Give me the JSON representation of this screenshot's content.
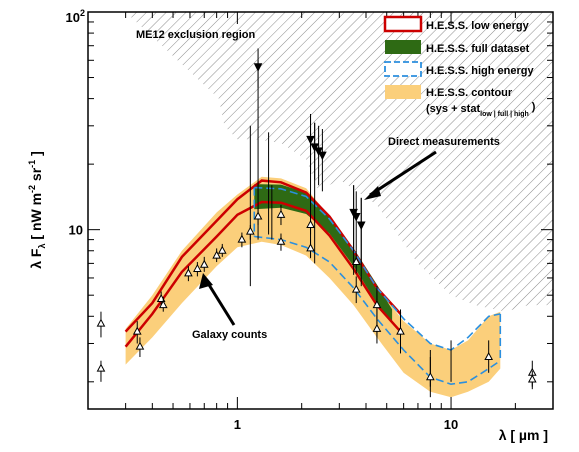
{
  "chart_data": {
    "type": "line",
    "x_axis": {
      "scale": "log",
      "range": [
        0.2,
        30
      ],
      "ticks": [
        {
          "v": 1,
          "label": "1"
        },
        {
          "v": 10,
          "label": "10"
        }
      ]
    },
    "y_axis": {
      "scale": "log",
      "range": [
        1.5,
        100
      ],
      "ticks": [
        {
          "v": 10,
          "label": "10"
        },
        {
          "v": 100,
          "label": "10",
          "sup": "2"
        }
      ]
    },
    "xlabel": {
      "text": "λ  [ µm ]"
    },
    "ylabel": {
      "main": "λ F",
      "sub": "λ",
      "unit": "  [ nW m",
      "unit_sup1": "-2",
      "unit_mid": " sr",
      "unit_sup2": "-1",
      "unit_end": " ]"
    },
    "exclusion_region": {
      "label": "ME12 exclusion region",
      "lower_boundary": [
        [
          0.3,
          100
        ],
        [
          0.82,
          40
        ],
        [
          0.87,
          30
        ],
        [
          1.0,
          26
        ],
        [
          1.2,
          26
        ],
        [
          1.6,
          25
        ],
        [
          2.1,
          21
        ],
        [
          2.4,
          15
        ],
        [
          3.0,
          17
        ],
        [
          4.5,
          13
        ],
        [
          7.0,
          7.0
        ],
        [
          10,
          5.0
        ],
        [
          13,
          4.5
        ],
        [
          18,
          4.2
        ],
        [
          23,
          4.5
        ],
        [
          30,
          4.5
        ]
      ]
    },
    "series": [
      {
        "name": "H.E.S.S. contour",
        "kind": "contour",
        "color": "#fbcf7b",
        "upper": [
          [
            0.3,
            3.5
          ],
          [
            0.4,
            5.0
          ],
          [
            0.55,
            8.0
          ],
          [
            0.8,
            12.0
          ],
          [
            1.0,
            14.5
          ],
          [
            1.3,
            17.5
          ],
          [
            1.6,
            17.2
          ],
          [
            2.1,
            15.5
          ],
          [
            2.7,
            11.5
          ],
          [
            3.5,
            8.0
          ],
          [
            4.5,
            5.4
          ],
          [
            6,
            3.8
          ],
          [
            8,
            3.0
          ],
          [
            10,
            2.8
          ],
          [
            12,
            3.1
          ],
          [
            15,
            4.0
          ],
          [
            17,
            4.2
          ]
        ],
        "lower": [
          [
            17,
            2.3
          ],
          [
            15,
            2.0
          ],
          [
            12,
            1.8
          ],
          [
            10,
            1.7
          ],
          [
            8,
            1.8
          ],
          [
            6,
            2.2
          ],
          [
            4.5,
            3.2
          ],
          [
            3.5,
            4.5
          ],
          [
            2.7,
            6.0
          ],
          [
            2.1,
            7.6
          ],
          [
            1.6,
            8.5
          ],
          [
            1.3,
            8.8
          ],
          [
            1.0,
            8.3
          ],
          [
            0.8,
            6.8
          ],
          [
            0.55,
            4.6
          ],
          [
            0.4,
            3.2
          ],
          [
            0.3,
            2.4
          ]
        ]
      },
      {
        "name": "H.E.S.S. low energy",
        "kind": "band",
        "color": "#cc0000",
        "upper": [
          [
            0.3,
            3.4
          ],
          [
            0.4,
            4.6
          ],
          [
            0.55,
            7.5
          ],
          [
            0.8,
            11.0
          ],
          [
            1.0,
            13.8
          ],
          [
            1.3,
            16.8
          ],
          [
            1.6,
            16.5
          ],
          [
            2.1,
            14.8
          ],
          [
            2.7,
            11.5
          ],
          [
            3.5,
            8.0
          ],
          [
            4.5,
            5.4
          ],
          [
            5.8,
            4.1
          ]
        ],
        "lower": [
          [
            5.8,
            3.4
          ],
          [
            4.5,
            4.5
          ],
          [
            3.5,
            6.6
          ],
          [
            2.7,
            9.4
          ],
          [
            2.1,
            12.2
          ],
          [
            1.6,
            13.3
          ],
          [
            1.3,
            13.4
          ],
          [
            1.0,
            11.7
          ],
          [
            0.8,
            9.3
          ],
          [
            0.55,
            6.4
          ],
          [
            0.4,
            4.1
          ],
          [
            0.3,
            2.9
          ]
        ]
      },
      {
        "name": "H.E.S.S. full dataset",
        "kind": "band",
        "color": "#2e6a14",
        "upper": [
          [
            1.2,
            16.2
          ],
          [
            1.6,
            16.1
          ],
          [
            2.1,
            14.8
          ],
          [
            2.7,
            11.6
          ],
          [
            3.5,
            8.2
          ],
          [
            4.5,
            5.6
          ],
          [
            5.3,
            4.3
          ]
        ],
        "lower": [
          [
            5.3,
            3.7
          ],
          [
            4.5,
            4.6
          ],
          [
            3.5,
            6.8
          ],
          [
            2.7,
            9.6
          ],
          [
            2.1,
            11.8
          ],
          [
            1.6,
            12.6
          ],
          [
            1.2,
            12.4
          ]
        ]
      },
      {
        "name": "H.E.S.S. high energy",
        "kind": "dashed",
        "color": "#2b8fde",
        "upper": [
          [
            1.2,
            15.6
          ],
          [
            1.6,
            15.4
          ],
          [
            2.1,
            14.2
          ],
          [
            2.7,
            11.2
          ],
          [
            3.5,
            8.0
          ],
          [
            4.5,
            5.4
          ],
          [
            6,
            3.9
          ],
          [
            8,
            3.0
          ],
          [
            10,
            2.8
          ],
          [
            12,
            3.2
          ],
          [
            15,
            4.0
          ],
          [
            17,
            4.1
          ]
        ],
        "lower": [
          [
            1.2,
            9.3
          ],
          [
            1.6,
            9.0
          ],
          [
            2.1,
            8.3
          ],
          [
            2.7,
            7.1
          ],
          [
            3.5,
            5.4
          ],
          [
            4.5,
            3.9
          ],
          [
            6,
            2.8
          ],
          [
            8,
            2.1
          ],
          [
            10,
            1.95
          ],
          [
            12,
            2.0
          ],
          [
            15,
            2.3
          ],
          [
            17,
            2.5
          ]
        ]
      }
    ],
    "galaxy_counts": [
      {
        "x": 0.23,
        "y": 3.7,
        "lo": 3.2,
        "hi": 4.2
      },
      {
        "x": 0.23,
        "y": 2.3,
        "lo": 2.0,
        "hi": 2.5
      },
      {
        "x": 0.34,
        "y": 3.4,
        "lo": 3.0,
        "hi": 3.8
      },
      {
        "x": 0.35,
        "y": 2.9,
        "lo": 2.6,
        "hi": 3.2
      },
      {
        "x": 0.44,
        "y": 4.8,
        "lo": 4.4,
        "hi": 5.2
      },
      {
        "x": 0.45,
        "y": 4.5,
        "lo": 4.2,
        "hi": 4.9
      },
      {
        "x": 0.59,
        "y": 6.3,
        "lo": 5.8,
        "hi": 6.8
      },
      {
        "x": 0.65,
        "y": 6.6,
        "lo": 6.1,
        "hi": 7.1
      },
      {
        "x": 0.7,
        "y": 6.9,
        "lo": 6.4,
        "hi": 7.5
      },
      {
        "x": 0.8,
        "y": 7.6,
        "lo": 7.1,
        "hi": 8.2
      },
      {
        "x": 0.85,
        "y": 8.0,
        "lo": 7.5,
        "hi": 8.6
      },
      {
        "x": 1.05,
        "y": 9.0,
        "lo": 8.3,
        "hi": 9.7
      },
      {
        "x": 1.15,
        "y": 9.8,
        "lo": 9.0,
        "hi": 10.5
      },
      {
        "x": 1.25,
        "y": 11.5,
        "lo": 10.5,
        "hi": 12.5
      },
      {
        "x": 1.6,
        "y": 11.7,
        "lo": 10.5,
        "hi": 13.0
      },
      {
        "x": 1.6,
        "y": 8.8,
        "lo": 8.0,
        "hi": 9.6
      },
      {
        "x": 2.2,
        "y": 10.5,
        "lo": 9.5,
        "hi": 11.8
      },
      {
        "x": 2.2,
        "y": 8.2,
        "lo": 7.4,
        "hi": 9.0
      },
      {
        "x": 3.6,
        "y": 7.1,
        "lo": 6.3,
        "hi": 8.0
      },
      {
        "x": 3.6,
        "y": 5.3,
        "lo": 4.6,
        "hi": 6.1
      },
      {
        "x": 4.5,
        "y": 4.5,
        "lo": 3.9,
        "hi": 5.2
      },
      {
        "x": 4.5,
        "y": 3.5,
        "lo": 3.0,
        "hi": 4.0
      },
      {
        "x": 5.8,
        "y": 3.4,
        "lo": 2.7,
        "hi": 4.3
      },
      {
        "x": 8.0,
        "y": 2.1,
        "lo": 1.7,
        "hi": 2.6
      },
      {
        "x": 15.0,
        "y": 2.6,
        "lo": 2.2,
        "hi": 3.1
      },
      {
        "x": 24.0,
        "y": 2.2,
        "lo": 1.9,
        "hi": 2.5
      },
      {
        "x": 24.0,
        "y": 2.05,
        "lo": 1.85,
        "hi": 2.25
      }
    ],
    "direct_measurements": [
      {
        "x": 1.25,
        "y": 56,
        "lo": 45,
        "hi": 68
      },
      {
        "x": 2.2,
        "y": 26,
        "lo": 18,
        "hi": 34
      },
      {
        "x": 2.3,
        "y": 24,
        "lo": 17,
        "hi": 31
      },
      {
        "x": 2.4,
        "y": 23,
        "lo": 16,
        "hi": 30
      },
      {
        "x": 2.5,
        "y": 22,
        "lo": 15,
        "hi": 29
      },
      {
        "x": 3.5,
        "y": 12,
        "lo": 8,
        "hi": 16
      },
      {
        "x": 3.6,
        "y": 11.5,
        "lo": 8,
        "hi": 15
      },
      {
        "x": 3.8,
        "y": 10.5,
        "lo": 7,
        "hi": 14
      }
    ],
    "direct_error_bars": [
      {
        "x": 1.15,
        "lo": 5.5,
        "hi": 30
      },
      {
        "x": 1.25,
        "lo": 9.0,
        "hi": 60
      },
      {
        "x": 1.4,
        "lo": 9.5,
        "hi": 28
      },
      {
        "x": 1.45,
        "lo": 9.0,
        "hi": 16
      },
      {
        "x": 2.2,
        "lo": 7.5,
        "hi": 34
      },
      {
        "x": 2.3,
        "lo": 7.0,
        "hi": 31
      },
      {
        "x": 3.5,
        "lo": 6.2,
        "hi": 16
      },
      {
        "x": 3.8,
        "lo": 5.5,
        "hi": 14
      },
      {
        "x": 4.5,
        "lo": 3.2,
        "hi": 5.5
      },
      {
        "x": 8.0,
        "lo": 1.9,
        "hi": 2.8
      },
      {
        "x": 10.0,
        "lo": 2.0,
        "hi": 3.1
      }
    ],
    "annotations": [
      {
        "text": "Direct measurements",
        "x": 5.8,
        "y": 25
      },
      {
        "text": "Galaxy counts",
        "x": 1.15,
        "y": 3.0
      }
    ],
    "legend": {
      "placement": "top-right",
      "entries": [
        {
          "label": "H.E.S.S. low energy"
        },
        {
          "label": "H.E.S.S. full dataset"
        },
        {
          "label": "H.E.S.S. high energy"
        },
        {
          "label": "H.E.S.S. contour"
        }
      ],
      "contour_sub_main": "(sys + stat",
      "contour_sub_small": "low | full | high",
      "contour_sub_end": ")"
    }
  }
}
